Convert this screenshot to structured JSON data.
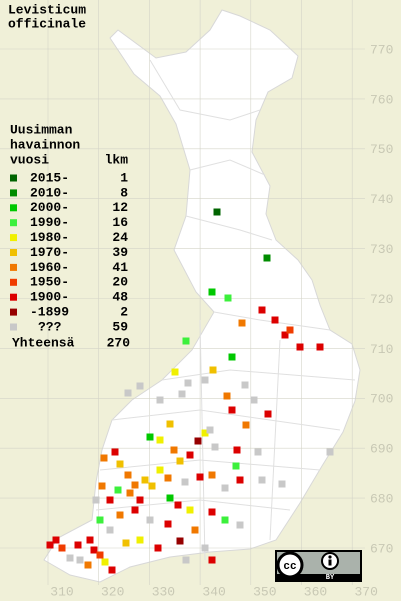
{
  "title": [
    "Levisticum",
    "officinale"
  ],
  "legend": {
    "header": [
      "Uusimman",
      "havainnon",
      "vuosi"
    ],
    "count_header": "lkm",
    "items": [
      {
        "label": "2015-",
        "count": 1,
        "color": "#006400"
      },
      {
        "label": "2010-",
        "count": 8,
        "color": "#008c00"
      },
      {
        "label": "2000-",
        "count": 12,
        "color": "#00c800"
      },
      {
        "label": "1990-",
        "count": 16,
        "color": "#3cf03c"
      },
      {
        "label": "1980-",
        "count": 24,
        "color": "#f0f000"
      },
      {
        "label": "1970-",
        "count": 39,
        "color": "#f0c000"
      },
      {
        "label": "1960-",
        "count": 41,
        "color": "#f07800"
      },
      {
        "label": "1950-",
        "count": 20,
        "color": "#f03c00"
      },
      {
        "label": "1900-",
        "count": 48,
        "color": "#dc0000"
      },
      {
        "label": "-1899",
        "count": 2,
        "color": "#960000"
      },
      {
        "label": "???",
        "count": 59,
        "color": "#c8c8c8"
      }
    ],
    "total": {
      "label": "Yhteensä",
      "count": 270
    }
  },
  "grid": {
    "y_ticks": [
      670,
      680,
      690,
      700,
      710,
      720,
      730,
      740,
      750,
      760,
      770
    ],
    "x_ticks": [
      310,
      320,
      330,
      340,
      350,
      360,
      370
    ]
  },
  "license": {
    "cc": "cc",
    "by": "BY"
  }
}
